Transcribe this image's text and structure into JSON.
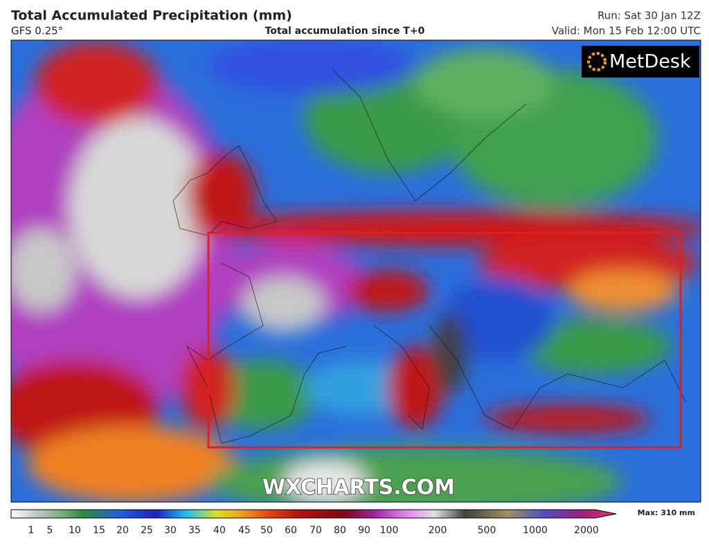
{
  "header": {
    "title": "Total Accumulated Precipitation (mm)",
    "model": "GFS 0.25°",
    "subtitle": "Total accumulation since T+0",
    "run": "Run: Sat 30 Jan 12Z",
    "valid": "Valid: Mon 15 Feb 12:00 UTC"
  },
  "logo": "MetDesk",
  "watermark": "WXCHARTS.COM",
  "colorbar": {
    "ticks": [
      1,
      5,
      10,
      15,
      20,
      25,
      30,
      35,
      40,
      45,
      50,
      60,
      70,
      80,
      90,
      100,
      200,
      500,
      1000,
      2000
    ],
    "max_label": "Max: 310 mm"
  }
}
